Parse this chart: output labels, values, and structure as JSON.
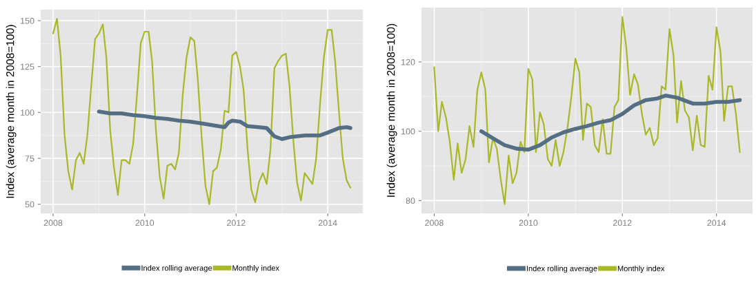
{
  "chart_data": [
    {
      "type": "line",
      "ylabel": "Index (average month in 2008=100)",
      "grid": true,
      "legend": "bottom",
      "xlim": [
        "2007-09-24",
        "2014-10-08"
      ],
      "xticks": [
        "2008",
        "2010",
        "2012",
        "2014"
      ],
      "ylim": [
        45,
        156
      ],
      "yticks": [
        50,
        75,
        100,
        125,
        150
      ],
      "series": [
        {
          "name": "Index rolling average",
          "color": "#546e83",
          "x": [
            "2009-01",
            "2009-04",
            "2009-07",
            "2009-10",
            "2010-01",
            "2010-04",
            "2010-07",
            "2010-10",
            "2011-01",
            "2011-04",
            "2011-07",
            "2011-10",
            "2011-11",
            "2011-12",
            "2012-02",
            "2012-04",
            "2012-07",
            "2012-09",
            "2012-11",
            "2013-01",
            "2013-03",
            "2013-07",
            "2013-11",
            "2014-01",
            "2014-04",
            "2014-06",
            "2014-07"
          ],
          "values": [
            100.5,
            99.5,
            99.5,
            98.5,
            98,
            97,
            96.5,
            95.5,
            95,
            94,
            93,
            92,
            94.5,
            95.5,
            95,
            92.5,
            92,
            91.5,
            87,
            85.5,
            86.5,
            87.5,
            87.5,
            89,
            91.5,
            92,
            91.5
          ]
        },
        {
          "name": "Monthly index",
          "color": "#a9b828",
          "x": [
            "2008-01",
            "2008-02",
            "2008-03",
            "2008-04",
            "2008-05",
            "2008-06",
            "2008-07",
            "2008-08",
            "2008-09",
            "2008-10",
            "2008-11",
            "2008-12",
            "2009-01",
            "2009-02",
            "2009-03",
            "2009-04",
            "2009-05",
            "2009-06",
            "2009-07",
            "2009-08",
            "2009-09",
            "2009-10",
            "2009-11",
            "2009-12",
            "2010-01",
            "2010-02",
            "2010-03",
            "2010-04",
            "2010-05",
            "2010-06",
            "2010-07",
            "2010-08",
            "2010-09",
            "2010-10",
            "2010-11",
            "2010-12",
            "2011-01",
            "2011-02",
            "2011-03",
            "2011-04",
            "2011-05",
            "2011-06",
            "2011-07",
            "2011-08",
            "2011-09",
            "2011-10",
            "2011-11",
            "2011-12",
            "2012-01",
            "2012-02",
            "2012-03",
            "2012-04",
            "2012-05",
            "2012-06",
            "2012-07",
            "2012-08",
            "2012-09",
            "2012-10",
            "2012-11",
            "2012-12",
            "2013-01",
            "2013-02",
            "2013-03",
            "2013-04",
            "2013-05",
            "2013-06",
            "2013-07",
            "2013-08",
            "2013-09",
            "2013-10",
            "2013-11",
            "2013-12",
            "2014-01",
            "2014-02",
            "2014-03",
            "2014-04",
            "2014-05",
            "2014-06",
            "2014-07"
          ],
          "values": [
            143,
            151,
            131,
            88,
            68,
            58,
            74,
            78,
            72,
            88,
            115,
            140,
            143,
            148,
            130,
            90,
            70,
            55,
            74,
            74,
            72,
            83,
            110,
            138,
            144,
            144,
            128,
            90,
            65,
            53,
            71,
            72,
            69,
            78,
            110,
            130,
            141,
            139,
            118,
            86,
            60,
            50,
            68,
            70,
            80,
            101,
            100,
            131,
            133,
            125,
            112,
            80,
            58,
            51,
            62,
            67,
            61,
            80,
            124,
            128,
            131,
            132,
            115,
            85,
            62,
            52,
            67,
            64,
            61,
            75,
            105,
            130,
            145,
            145,
            128,
            100,
            75,
            63,
            59
          ]
        }
      ]
    },
    {
      "type": "line",
      "ylabel": "Index (average month in 2008=100)",
      "grid": true,
      "legend": "bottom",
      "xlim": [
        "2007-09-24",
        "2014-10-08"
      ],
      "xticks": [
        "2008",
        "2010",
        "2012",
        "2014"
      ],
      "ylim": [
        76.3,
        135.7
      ],
      "yticks": [
        80,
        100,
        120
      ],
      "series": [
        {
          "name": "Index rolling average",
          "color": "#546e83",
          "x": [
            "2009-01",
            "2009-04",
            "2009-07",
            "2009-10",
            "2010-01",
            "2010-04",
            "2010-07",
            "2010-10",
            "2011-01",
            "2011-04",
            "2011-07",
            "2011-10",
            "2012-01",
            "2012-04",
            "2012-07",
            "2012-10",
            "2012-12",
            "2013-03",
            "2013-07",
            "2013-10",
            "2014-01",
            "2014-04",
            "2014-07"
          ],
          "values": [
            100,
            98,
            96,
            95,
            94.7,
            96,
            98.2,
            99.7,
            100.7,
            101.5,
            102.5,
            103.2,
            105,
            107.5,
            109,
            109.5,
            110.3,
            109.7,
            108,
            108,
            108.5,
            108.5,
            109
          ]
        },
        {
          "name": "Monthly index",
          "color": "#a9b828",
          "x": [
            "2008-01",
            "2008-02",
            "2008-03",
            "2008-04",
            "2008-05",
            "2008-06",
            "2008-07",
            "2008-08",
            "2008-09",
            "2008-10",
            "2008-11",
            "2008-12",
            "2009-01",
            "2009-02",
            "2009-03",
            "2009-04",
            "2009-05",
            "2009-06",
            "2009-07",
            "2009-08",
            "2009-09",
            "2009-10",
            "2009-11",
            "2009-12",
            "2010-01",
            "2010-02",
            "2010-03",
            "2010-04",
            "2010-05",
            "2010-06",
            "2010-07",
            "2010-08",
            "2010-09",
            "2010-10",
            "2010-11",
            "2010-12",
            "2011-01",
            "2011-02",
            "2011-03",
            "2011-04",
            "2011-05",
            "2011-06",
            "2011-07",
            "2011-08",
            "2011-09",
            "2011-10",
            "2011-11",
            "2011-12",
            "2012-01",
            "2012-02",
            "2012-03",
            "2012-04",
            "2012-05",
            "2012-06",
            "2012-07",
            "2012-08",
            "2012-09",
            "2012-10",
            "2012-11",
            "2012-12",
            "2013-01",
            "2013-02",
            "2013-03",
            "2013-04",
            "2013-05",
            "2013-06",
            "2013-07",
            "2013-08",
            "2013-09",
            "2013-10",
            "2013-11",
            "2013-12",
            "2014-01",
            "2014-02",
            "2014-03",
            "2014-04",
            "2014-05",
            "2014-06",
            "2014-07"
          ],
          "values": [
            118.5,
            100,
            108.5,
            104,
            97,
            86,
            96.5,
            88,
            92,
            101.5,
            95.5,
            112,
            117,
            112,
            91,
            98,
            95,
            86,
            79,
            93,
            85,
            88,
            97,
            94,
            118,
            115,
            94,
            105.5,
            102,
            92,
            90,
            97.5,
            90,
            94,
            101,
            110,
            121,
            117,
            97.5,
            108,
            107,
            96,
            94,
            103.5,
            93.5,
            93.5,
            107,
            109,
            133,
            124,
            110.5,
            116.5,
            113.5,
            105,
            99,
            101,
            96,
            98,
            113,
            112,
            129.5,
            122,
            102.5,
            114.5,
            106,
            104,
            94.5,
            104.5,
            96,
            95.5,
            116,
            112,
            130,
            123,
            103,
            113,
            113,
            105,
            94
          ]
        }
      ]
    }
  ]
}
